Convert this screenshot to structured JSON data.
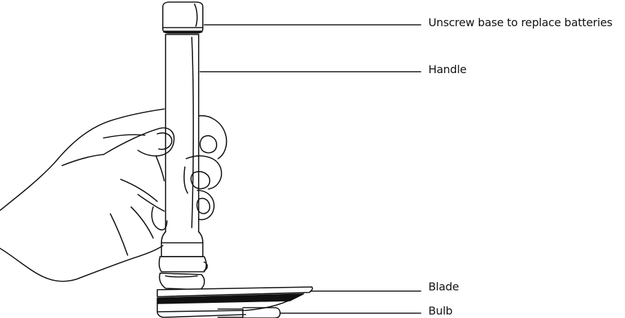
{
  "callouts": {
    "unscrew_base": "Unscrew base to replace batteries",
    "handle": "Handle",
    "blade": "Blade",
    "bulb": "Bulb"
  },
  "colors": {
    "stroke": "#111111",
    "background": "#ffffff"
  }
}
